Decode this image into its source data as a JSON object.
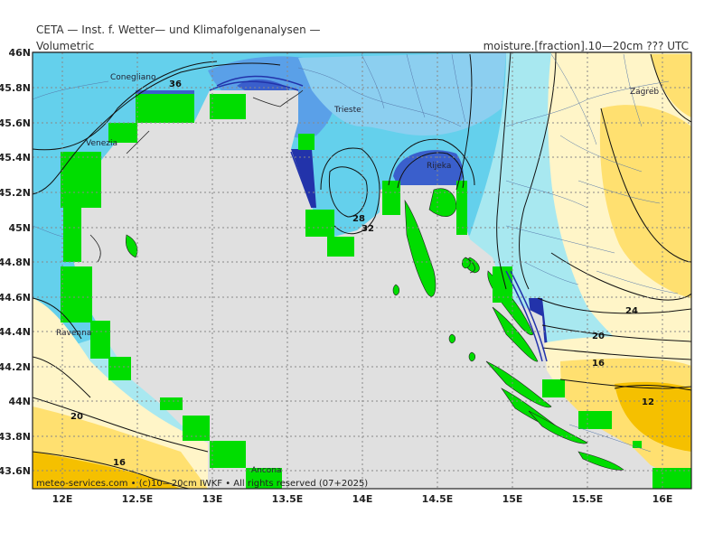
{
  "header": {
    "title": "CETA — Inst. f. Wetter— und Klimafolgenanalysen —",
    "subtitle_left": "Volumetric",
    "subtitle_right": "moisture.[fraction].10—20cm ??? UTC"
  },
  "axes": {
    "lat_labels": [
      "46N",
      "45.8N",
      "45.6N",
      "45.4N",
      "45.2N",
      "45N",
      "44.8N",
      "44.6N",
      "44.4N",
      "44.2N",
      "44N",
      "43.8N",
      "43.6N"
    ],
    "lon_labels": [
      "12E",
      "12.5E",
      "13E",
      "13.5E",
      "14E",
      "14.5E",
      "15E",
      "15.5E",
      "16E"
    ]
  },
  "cities": [
    "Conegliano",
    "Venezia",
    "Trieste",
    "Rijeka",
    "Zagreb",
    "Ravenna",
    "Ancona"
  ],
  "contour_labels": [
    "36",
    "28",
    "32",
    "24",
    "20",
    "16",
    "12",
    "20",
    "16"
  ],
  "footer": {
    "copyright": "meteo-services.com • (c)10—20cm IWKF • All rights reserved (07+2025)"
  },
  "colors": {
    "sea": "#e0e0e0",
    "land_mask": "#00dd00",
    "very_wet": "#2233aa",
    "wet": "#5aa0e8",
    "moist": "#64d0ec",
    "moderate": "#a8e8f0",
    "dry_light": "#fff5c8",
    "dry": "#ffe070",
    "very_dry": "#f5c000"
  }
}
